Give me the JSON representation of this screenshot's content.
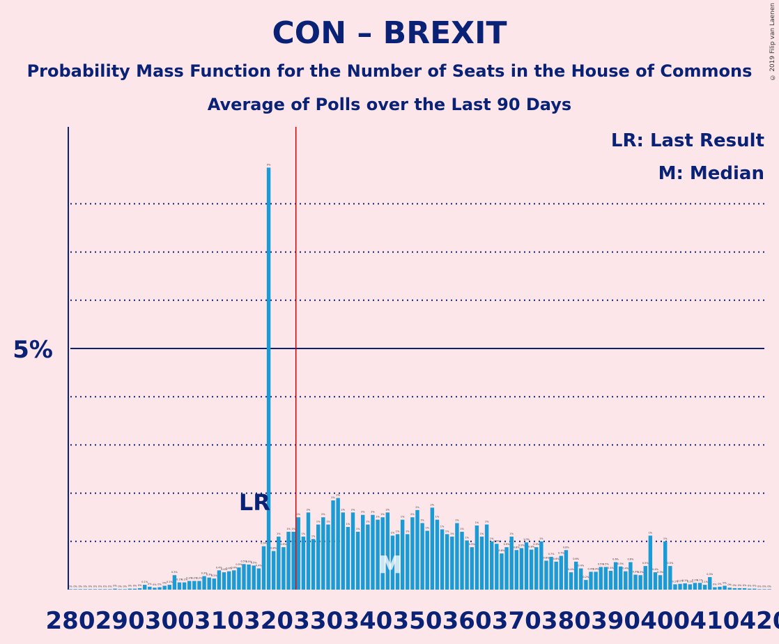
{
  "title": "CON – BREXIT",
  "subtitle1": "Probability Mass Function for the Number of Seats in the House of Commons",
  "subtitle2": "Average of Polls over the Last 90 Days",
  "copyright": "© 2019 Filip van Laenen",
  "legend": {
    "lr": "LR: Last Result",
    "median": "M: Median"
  },
  "colors": {
    "background": "#fde6ea",
    "text": "#0a2275",
    "bar": "#1b9bd6",
    "threshold": "#cc0000",
    "grid": "#0a2275"
  },
  "chart_data": {
    "type": "bar",
    "x_start": 280,
    "x_end": 420,
    "x_ticks": [
      280,
      290,
      300,
      310,
      320,
      330,
      340,
      350,
      360,
      370,
      380,
      390,
      400,
      410,
      420
    ],
    "y_max": 9.5,
    "y_tick_label": "5%",
    "y_tick_value": 5,
    "dotted_gridlines": [
      1,
      2,
      3,
      4,
      6,
      7,
      8
    ],
    "last_result": {
      "seat": 318,
      "label": "LR"
    },
    "median": {
      "seat": 344,
      "label": "M"
    },
    "majority_line": 326,
    "values": [
      0.01,
      0.01,
      0.01,
      0.01,
      0.01,
      0.01,
      0.01,
      0.01,
      0.01,
      0.02,
      0.01,
      0.01,
      0.02,
      0.02,
      0.03,
      0.1,
      0.06,
      0.04,
      0.05,
      0.08,
      0.1,
      0.3,
      0.15,
      0.15,
      0.18,
      0.18,
      0.18,
      0.28,
      0.25,
      0.23,
      0.4,
      0.36,
      0.38,
      0.4,
      0.46,
      0.53,
      0.52,
      0.5,
      0.44,
      0.9,
      8.75,
      0.8,
      1.1,
      0.88,
      1.2,
      1.2,
      1.5,
      1.1,
      1.6,
      1.05,
      1.35,
      1.5,
      1.35,
      1.85,
      1.9,
      1.6,
      1.3,
      1.6,
      1.2,
      1.55,
      1.35,
      1.55,
      1.45,
      1.5,
      1.6,
      1.12,
      1.15,
      1.45,
      1.15,
      1.5,
      1.65,
      1.38,
      1.22,
      1.7,
      1.45,
      1.25,
      1.15,
      1.1,
      1.38,
      1.2,
      1.02,
      0.88,
      1.33,
      1.1,
      1.35,
      1.0,
      0.95,
      0.75,
      0.88,
      1.1,
      0.82,
      0.86,
      0.98,
      0.83,
      0.88,
      1.0,
      0.6,
      0.68,
      0.58,
      0.7,
      0.82,
      0.36,
      0.58,
      0.44,
      0.2,
      0.37,
      0.37,
      0.47,
      0.47,
      0.39,
      0.57,
      0.48,
      0.38,
      0.57,
      0.31,
      0.3,
      0.49,
      1.12,
      0.36,
      0.3,
      1.0,
      0.49,
      0.11,
      0.12,
      0.13,
      0.11,
      0.14,
      0.14,
      0.1,
      0.26,
      0.05,
      0.06,
      0.08,
      0.04,
      0.03,
      0.03,
      0.03,
      0.02,
      0.02,
      0.01,
      0.01,
      0.01
    ]
  }
}
